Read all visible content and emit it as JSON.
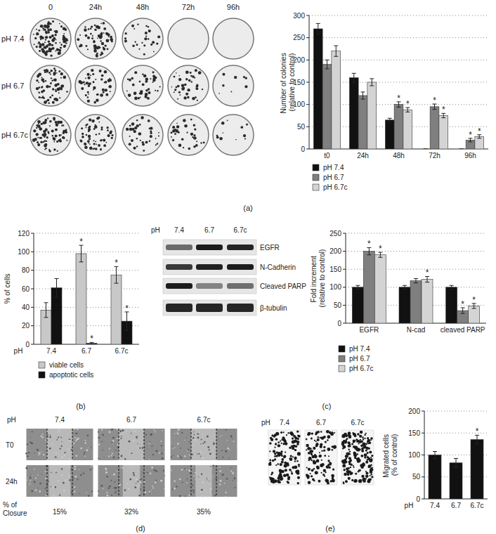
{
  "panels": [
    "(a)",
    "(b)",
    "(c)",
    "(d)",
    "(e)"
  ],
  "colony_plates": {
    "columns": [
      "0",
      "24h",
      "48h",
      "72h",
      "96h"
    ],
    "rows": [
      "pH 7.4",
      "pH 6.7",
      "pH 6.7c"
    ]
  },
  "western_blot": {
    "header": "pH",
    "lanes": [
      "7.4",
      "6.7",
      "6.7c"
    ],
    "bands": [
      "EGFR",
      "N-Cadherin",
      "Cleaved PARP",
      "β-tubulin"
    ]
  },
  "scratch_assay": {
    "header": "pH",
    "lanes": [
      "7.4",
      "6.7",
      "6.7c"
    ],
    "rows": [
      "T0",
      "24h"
    ],
    "closure_label": [
      "% of",
      "Closure"
    ],
    "closure": [
      15,
      32,
      35
    ],
    "closure_labels": [
      "15%",
      "32%",
      "35%"
    ]
  },
  "transwell": {
    "header": "pH",
    "lanes": [
      "7.4",
      "6.7",
      "6.7c"
    ]
  },
  "chart_data": [
    {
      "type": "bar",
      "y_label": "Number of colonies (relative to control)",
      "categories": [
        "t0",
        "24h",
        "48h",
        "72h",
        "96h"
      ],
      "series": [
        {
          "name": "pH 7.4",
          "color": "#111111",
          "values": [
            270,
            160,
            65,
            0,
            0
          ],
          "errors": [
            12,
            10,
            4,
            0,
            0
          ]
        },
        {
          "name": "pH 6.7",
          "color": "#7f7f7f",
          "values": [
            190,
            120,
            100,
            95,
            20
          ],
          "errors": [
            10,
            8,
            6,
            6,
            4
          ]
        },
        {
          "name": "pH 6.7c",
          "color": "#d4d4d4",
          "values": [
            220,
            150,
            88,
            75,
            28
          ],
          "errors": [
            12,
            8,
            5,
            5,
            4
          ]
        }
      ],
      "ylim": [
        0,
        300
      ],
      "yticks": [
        0,
        50,
        100,
        150,
        200,
        250,
        300
      ],
      "grid": true,
      "legend": "bottom",
      "annotations": [
        {
          "text": "*",
          "series": 1,
          "index": 2
        },
        {
          "text": "*",
          "series": 2,
          "index": 2
        },
        {
          "text": "*",
          "series": 1,
          "index": 3
        },
        {
          "text": "*",
          "series": 2,
          "index": 3
        },
        {
          "text": "*",
          "series": 1,
          "index": 4
        },
        {
          "text": "*",
          "series": 2,
          "index": 4
        }
      ]
    },
    {
      "type": "bar",
      "y_label": "% of cells",
      "x_label": "pH",
      "categories": [
        "7.4",
        "6.7",
        "6.7c"
      ],
      "series": [
        {
          "name": "viable cells",
          "color": "#c8c8c8",
          "values": [
            37,
            98,
            75
          ],
          "errors": [
            8,
            9,
            9
          ]
        },
        {
          "name": "apoptotic cells",
          "color": "#111111",
          "values": [
            61,
            1,
            25
          ],
          "errors": [
            10,
            1,
            10
          ]
        }
      ],
      "ylim": [
        0,
        120
      ],
      "yticks": [
        0,
        20,
        40,
        60,
        80,
        100,
        120
      ],
      "grid": true,
      "legend": "bottom",
      "annotations": [
        {
          "text": "*",
          "series": 0,
          "index": 1
        },
        {
          "text": "*",
          "series": 1,
          "index": 1
        },
        {
          "text": "*",
          "series": 0,
          "index": 2
        },
        {
          "text": "*",
          "series": 1,
          "index": 2
        }
      ]
    },
    {
      "type": "bar",
      "y_label": "Fold increment (relative to control)",
      "categories": [
        "EGFR",
        "N-cad",
        "cleaved PARP"
      ],
      "series": [
        {
          "name": "pH 7.4",
          "color": "#111111",
          "values": [
            100,
            100,
            100
          ],
          "errors": [
            5,
            5,
            5
          ]
        },
        {
          "name": "pH 6.7",
          "color": "#7f7f7f",
          "values": [
            200,
            118,
            35
          ],
          "errors": [
            10,
            6,
            8
          ]
        },
        {
          "name": "pH 6.7c",
          "color": "#d4d4d4",
          "values": [
            190,
            122,
            48
          ],
          "errors": [
            7,
            8,
            7
          ]
        }
      ],
      "ylim": [
        0,
        250
      ],
      "yticks": [
        0,
        50,
        100,
        150,
        200,
        250
      ],
      "grid": true,
      "legend": "bottom",
      "annotations": [
        {
          "text": "*",
          "series": 1,
          "index": 0
        },
        {
          "text": "*",
          "series": 2,
          "index": 0
        },
        {
          "text": "*",
          "series": 2,
          "index": 1
        },
        {
          "text": "*",
          "series": 1,
          "index": 2
        },
        {
          "text": "*",
          "series": 2,
          "index": 2
        }
      ]
    },
    {
      "type": "bar",
      "y_label": "Migrated cells (% of control)",
      "x_label": "pH",
      "categories": [
        "7.4",
        "6.7",
        "6.7c"
      ],
      "values": [
        100,
        82,
        135
      ],
      "errors": [
        8,
        10,
        10
      ],
      "color": "#111111",
      "ylim": [
        0,
        200
      ],
      "yticks": [
        0,
        50,
        100,
        150,
        200
      ],
      "grid": true,
      "annotations": [
        {
          "text": "*",
          "index": 2
        }
      ]
    }
  ]
}
